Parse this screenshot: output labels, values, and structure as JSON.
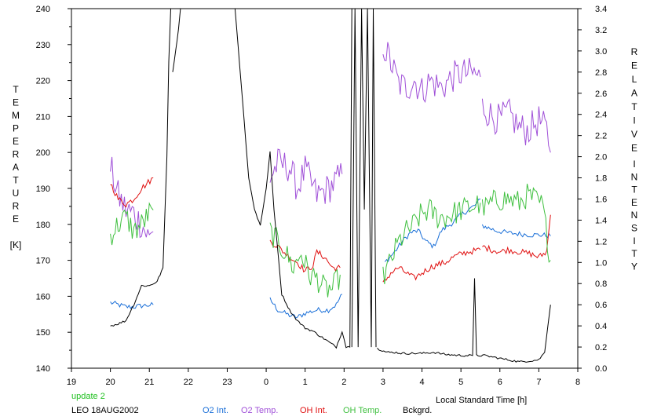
{
  "chart_data": {
    "type": "line",
    "title": "",
    "xlabel": "Local Standard Time [h]",
    "ylabel_left_letters": [
      "T",
      "E",
      "M",
      "P",
      "E",
      "R",
      "A",
      "T",
      "U",
      "R",
      "E",
      "",
      "[K]"
    ],
    "ylabel_right_top_letters": [
      "R",
      "E",
      "L",
      "A",
      "T",
      "I",
      "V",
      "E"
    ],
    "ylabel_right_bottom_letters": [
      "I",
      "N",
      "T",
      "E",
      "N",
      "S",
      "I",
      "T",
      "Y"
    ],
    "x_ticks": [
      "19",
      "20",
      "21",
      "22",
      "23",
      "0",
      "1",
      "2",
      "3",
      "4",
      "5",
      "6",
      "7",
      "8"
    ],
    "y_left_ticks": [
      "140",
      "150",
      "160",
      "170",
      "180",
      "190",
      "200",
      "210",
      "220",
      "230",
      "240"
    ],
    "y_right_ticks": [
      "0.0",
      "0.2",
      "0.4",
      "0.6",
      "0.8",
      "1.0",
      "1.2",
      "1.4",
      "1.6",
      "1.8",
      "2.0",
      "2.2",
      "2.4",
      "2.6",
      "2.8",
      "3.0",
      "3.2",
      "3.4"
    ],
    "xlim": [
      19,
      32
    ],
    "ylim_left": [
      140,
      240
    ],
    "ylim_right": [
      0,
      3.4
    ],
    "notes": {
      "update": "update 2",
      "station": "LEO 18AUG2002"
    },
    "colors": {
      "o2_int": "#1a6fd8",
      "o2_temp": "#a050d8",
      "oh_int": "#e01010",
      "oh_temp": "#40c040",
      "bckgrd": "#000000",
      "update": "#20c020"
    },
    "series": [
      {
        "name": "O2 Int.",
        "key": "o2_int",
        "axis": "right",
        "noise": 0.025,
        "segments": [
          [
            [
              20.0,
              0.62
            ],
            [
              20.2,
              0.6
            ],
            [
              20.4,
              0.58
            ],
            [
              20.6,
              0.58
            ],
            [
              20.8,
              0.59
            ],
            [
              21.1,
              0.6
            ]
          ],
          [
            [
              24.1,
              0.65
            ],
            [
              24.3,
              0.55
            ],
            [
              24.6,
              0.5
            ],
            [
              24.8,
              0.48
            ],
            [
              25.0,
              0.52
            ],
            [
              25.3,
              0.55
            ],
            [
              25.6,
              0.55
            ],
            [
              25.8,
              0.6
            ],
            [
              25.95,
              0.7
            ]
          ],
          [
            [
              27.05,
              1.0
            ],
            [
              27.3,
              1.1
            ],
            [
              27.5,
              1.2
            ],
            [
              27.7,
              1.28
            ],
            [
              27.9,
              1.3
            ],
            [
              28.1,
              1.2
            ],
            [
              28.3,
              1.15
            ],
            [
              28.5,
              1.3
            ],
            [
              28.8,
              1.38
            ],
            [
              29.0,
              1.45
            ],
            [
              29.2,
              1.5
            ],
            [
              29.4,
              1.55
            ],
            [
              29.5,
              1.6
            ]
          ],
          [
            [
              29.55,
              1.35
            ],
            [
              29.9,
              1.3
            ],
            [
              30.2,
              1.28
            ],
            [
              30.5,
              1.27
            ],
            [
              30.8,
              1.26
            ],
            [
              31.1,
              1.26
            ],
            [
              31.3,
              1.25
            ]
          ]
        ]
      },
      {
        "name": "O2 Temp.",
        "key": "o2_temp",
        "axis": "left",
        "noise": 4.5,
        "segments": [
          [
            [
              20.0,
              196
            ],
            [
              20.2,
              188
            ],
            [
              20.4,
              184
            ],
            [
              20.6,
              183
            ],
            [
              20.8,
              180
            ],
            [
              21.0,
              176
            ],
            [
              21.1,
              178
            ]
          ],
          [
            [
              24.1,
              193
            ],
            [
              24.3,
              197
            ],
            [
              24.6,
              196
            ],
            [
              24.8,
              190
            ],
            [
              25.0,
              195
            ],
            [
              25.3,
              188
            ],
            [
              25.6,
              190
            ],
            [
              25.8,
              192
            ],
            [
              25.95,
              194
            ]
          ],
          [
            [
              27.0,
              230
            ],
            [
              27.2,
              225
            ],
            [
              27.4,
              219
            ],
            [
              27.6,
              218
            ],
            [
              27.8,
              220
            ],
            [
              28.0,
              217
            ],
            [
              28.2,
              220
            ],
            [
              28.5,
              218
            ],
            [
              28.8,
              221
            ],
            [
              29.0,
              222
            ],
            [
              29.3,
              222
            ],
            [
              29.5,
              221
            ]
          ],
          [
            [
              29.55,
              213
            ],
            [
              29.8,
              210
            ],
            [
              30.0,
              209
            ],
            [
              30.2,
              211
            ],
            [
              30.5,
              207
            ],
            [
              30.7,
              206
            ],
            [
              31.0,
              209
            ],
            [
              31.2,
              206
            ],
            [
              31.3,
              200
            ]
          ]
        ]
      },
      {
        "name": "OH Int.",
        "key": "oh_int",
        "axis": "right",
        "noise": 0.03,
        "segments": [
          [
            [
              20.0,
              1.75
            ],
            [
              20.2,
              1.6
            ],
            [
              20.4,
              1.55
            ],
            [
              20.6,
              1.6
            ],
            [
              20.8,
              1.7
            ],
            [
              21.1,
              1.8
            ]
          ],
          [
            [
              24.1,
              1.2
            ],
            [
              24.3,
              1.15
            ],
            [
              24.6,
              1.05
            ],
            [
              24.8,
              1.0
            ],
            [
              25.0,
              0.92
            ],
            [
              25.2,
              0.97
            ],
            [
              25.3,
              1.1
            ],
            [
              25.5,
              1.05
            ],
            [
              25.7,
              0.95
            ],
            [
              25.9,
              0.95
            ]
          ],
          [
            [
              27.0,
              0.8
            ],
            [
              27.2,
              0.9
            ],
            [
              27.4,
              0.95
            ],
            [
              27.6,
              0.9
            ],
            [
              27.8,
              0.85
            ],
            [
              28.0,
              0.9
            ],
            [
              28.2,
              0.95
            ],
            [
              28.4,
              0.98
            ],
            [
              28.6,
              1.0
            ],
            [
              28.8,
              1.05
            ],
            [
              29.0,
              1.08
            ],
            [
              29.2,
              1.1
            ],
            [
              29.5,
              1.12
            ]
          ],
          [
            [
              29.55,
              1.15
            ],
            [
              29.8,
              1.12
            ],
            [
              30.0,
              1.1
            ],
            [
              30.2,
              1.12
            ],
            [
              30.5,
              1.1
            ],
            [
              30.8,
              1.08
            ],
            [
              31.0,
              1.05
            ],
            [
              31.2,
              1.1
            ],
            [
              31.3,
              1.45
            ]
          ]
        ]
      },
      {
        "name": "OH Temp.",
        "key": "oh_temp",
        "axis": "left",
        "noise": 3.5,
        "segments": [
          [
            [
              20.0,
              177
            ],
            [
              20.2,
              180
            ],
            [
              20.4,
              182
            ],
            [
              20.6,
              178
            ],
            [
              20.8,
              180
            ],
            [
              21.0,
              183
            ],
            [
              21.1,
              184
            ]
          ],
          [
            [
              24.1,
              178
            ],
            [
              24.3,
              175
            ],
            [
              24.5,
              172
            ],
            [
              24.7,
              168
            ],
            [
              24.9,
              172
            ],
            [
              25.1,
              166
            ],
            [
              25.3,
              165
            ],
            [
              25.5,
              162
            ],
            [
              25.7,
              162
            ],
            [
              25.9,
              166
            ]
          ],
          [
            [
              27.0,
              165
            ],
            [
              27.2,
              170
            ],
            [
              27.4,
              175
            ],
            [
              27.6,
              178
            ],
            [
              27.8,
              180
            ],
            [
              28.0,
              183
            ],
            [
              28.2,
              184
            ],
            [
              28.4,
              182
            ],
            [
              28.6,
              182
            ],
            [
              28.8,
              183
            ],
            [
              29.0,
              184
            ],
            [
              29.3,
              185
            ],
            [
              29.5,
              186
            ]
          ],
          [
            [
              29.55,
              184
            ],
            [
              29.8,
              186
            ],
            [
              30.0,
              187
            ],
            [
              30.2,
              187
            ],
            [
              30.5,
              186
            ],
            [
              30.7,
              188
            ],
            [
              30.9,
              187
            ],
            [
              31.1,
              185
            ],
            [
              31.3,
              170
            ]
          ]
        ]
      },
      {
        "name": "Bckgrd.",
        "key": "bckgrd",
        "axis": "right",
        "noise": 0.01,
        "segments": [
          [
            [
              20.0,
              0.4
            ],
            [
              20.2,
              0.42
            ],
            [
              20.4,
              0.45
            ],
            [
              20.6,
              0.6
            ],
            [
              20.8,
              0.78
            ],
            [
              21.0,
              0.78
            ],
            [
              21.2,
              0.82
            ],
            [
              21.35,
              0.95
            ],
            [
              21.45,
              2.0
            ],
            [
              21.5,
              2.9
            ],
            [
              21.55,
              3.4
            ]
          ],
          [
            [
              21.6,
              2.8
            ],
            [
              21.75,
              3.2
            ],
            [
              21.8,
              3.4
            ]
          ],
          [
            [
              23.2,
              3.4
            ],
            [
              23.4,
              2.5
            ],
            [
              23.55,
              1.8
            ],
            [
              23.7,
              1.5
            ],
            [
              23.85,
              1.35
            ],
            [
              24.0,
              1.7
            ],
            [
              24.1,
              2.05
            ],
            [
              24.2,
              1.5
            ],
            [
              24.4,
              0.7
            ],
            [
              24.6,
              0.55
            ],
            [
              24.8,
              0.45
            ],
            [
              25.0,
              0.38
            ],
            [
              25.2,
              0.35
            ],
            [
              25.4,
              0.3
            ],
            [
              25.6,
              0.25
            ],
            [
              25.8,
              0.2
            ],
            [
              25.95,
              0.35
            ],
            [
              26.05,
              0.2
            ],
            [
              26.15,
              0.2
            ],
            [
              26.2,
              3.4
            ]
          ],
          [
            [
              26.85,
              0.2
            ],
            [
              26.9,
              0.18
            ],
            [
              27.1,
              0.15
            ],
            [
              27.3,
              0.15
            ],
            [
              27.5,
              0.14
            ],
            [
              27.7,
              0.14
            ],
            [
              28.0,
              0.14
            ],
            [
              28.3,
              0.15
            ],
            [
              28.6,
              0.13
            ],
            [
              29.0,
              0.12
            ],
            [
              29.3,
              0.12
            ],
            [
              29.35,
              0.85
            ],
            [
              29.4,
              0.12
            ],
            [
              29.6,
              0.12
            ],
            [
              29.9,
              0.1
            ],
            [
              30.2,
              0.08
            ],
            [
              30.5,
              0.06
            ],
            [
              30.8,
              0.07
            ],
            [
              31.0,
              0.08
            ],
            [
              31.15,
              0.15
            ],
            [
              31.3,
              0.6
            ]
          ]
        ]
      }
    ]
  }
}
